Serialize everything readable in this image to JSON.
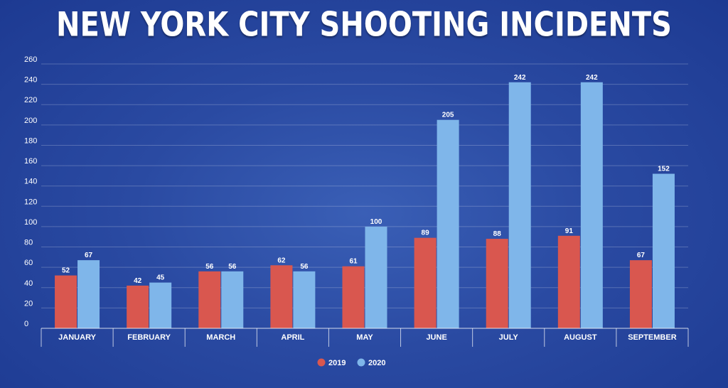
{
  "colors": {
    "series_2019": "#d9574f",
    "series_2020": "#7fb6ea",
    "grid": "#ffffff",
    "background": "#2a4aa2"
  },
  "chart_data": {
    "type": "bar",
    "title": "NEW YORK CITY SHOOTING INCIDENTS",
    "xlabel": "",
    "ylabel": "",
    "ylim": [
      0,
      260
    ],
    "yticks": [
      0,
      20,
      40,
      60,
      80,
      100,
      120,
      140,
      160,
      180,
      200,
      220,
      240,
      260
    ],
    "categories": [
      "JANUARY",
      "FEBRUARY",
      "MARCH",
      "APRIL",
      "MAY",
      "JUNE",
      "JULY",
      "AUGUST",
      "SEPTEMBER"
    ],
    "series": [
      {
        "name": "2019",
        "values": [
          52,
          42,
          56,
          62,
          61,
          89,
          88,
          91,
          67
        ]
      },
      {
        "name": "2020",
        "values": [
          67,
          45,
          56,
          56,
          100,
          205,
          242,
          242,
          152
        ]
      }
    ],
    "grid": true,
    "legend_position": "bottom-center"
  }
}
